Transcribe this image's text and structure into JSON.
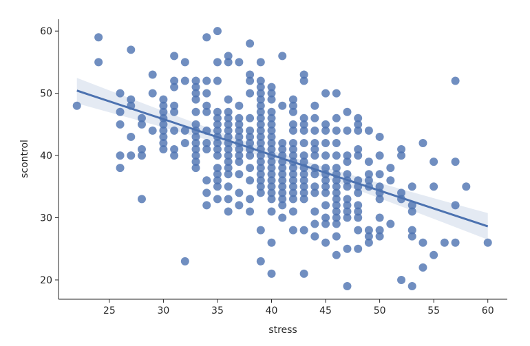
{
  "chart_data": {
    "type": "scatter",
    "title": "",
    "xlabel": "stress",
    "ylabel": "scontrol",
    "xlim": [
      20.3,
      61.8
    ],
    "ylim": [
      16.9,
      61.9
    ],
    "xticks": [
      25,
      30,
      35,
      40,
      45,
      50,
      55,
      60
    ],
    "yticks": [
      20,
      30,
      40,
      50,
      60
    ],
    "grid": false,
    "regression_line": true,
    "confidence_band": true,
    "colors": {
      "points": "#4c72b0",
      "line": "#4c72b0",
      "band": "#4c72b0"
    },
    "columns": [
      {
        "x": 22,
        "y": [
          48
        ]
      },
      {
        "x": 24,
        "y": [
          59,
          55
        ]
      },
      {
        "x": 26,
        "y": [
          50,
          47,
          45,
          40,
          38
        ]
      },
      {
        "x": 27,
        "y": [
          57,
          49,
          48,
          43,
          40
        ]
      },
      {
        "x": 28,
        "y": [
          46,
          45,
          41,
          40,
          33
        ]
      },
      {
        "x": 29,
        "y": [
          53,
          50,
          44
        ]
      },
      {
        "x": 30,
        "y": [
          49,
          48,
          47,
          46,
          45,
          44,
          43,
          42,
          41
        ]
      },
      {
        "x": 31,
        "y": [
          56,
          52,
          51,
          48,
          47,
          44,
          41,
          40
        ]
      },
      {
        "x": 32,
        "y": [
          55,
          52,
          44,
          42,
          23
        ]
      },
      {
        "x": 33,
        "y": [
          52,
          51,
          50,
          49,
          47,
          45,
          44,
          43,
          42,
          41,
          40,
          39,
          38
        ]
      },
      {
        "x": 34,
        "y": [
          59,
          52,
          50,
          48,
          47,
          44,
          42,
          41,
          36,
          34,
          32
        ]
      },
      {
        "x": 35,
        "y": [
          60,
          55,
          52,
          47,
          46,
          45,
          44,
          43,
          42,
          41,
          40,
          38,
          37,
          36,
          35,
          33
        ]
      },
      {
        "x": 36,
        "y": [
          56,
          55,
          49,
          47,
          46,
          45,
          44,
          43,
          42,
          41,
          40,
          39,
          38,
          37,
          35,
          33,
          31
        ]
      },
      {
        "x": 37,
        "y": [
          55,
          48,
          46,
          45,
          44,
          43,
          42,
          41,
          40,
          39,
          37,
          34,
          32
        ]
      },
      {
        "x": 38,
        "y": [
          58,
          53,
          52,
          50,
          46,
          44,
          43,
          42,
          41,
          40,
          38,
          36,
          33,
          31
        ]
      },
      {
        "x": 39,
        "y": [
          55,
          52,
          51,
          50,
          49,
          48,
          47,
          46,
          45,
          44,
          43,
          42,
          41,
          40,
          39,
          38,
          37,
          36,
          35,
          34,
          28,
          23
        ]
      },
      {
        "x": 40,
        "y": [
          51,
          50,
          49,
          47,
          46,
          45,
          44,
          43,
          42,
          41,
          40,
          39,
          38,
          37,
          36,
          35,
          34,
          33,
          31,
          26,
          21
        ]
      },
      {
        "x": 41,
        "y": [
          56,
          48,
          42,
          41,
          40,
          39,
          38,
          37,
          36,
          35,
          34,
          33,
          32,
          30
        ]
      },
      {
        "x": 42,
        "y": [
          49,
          48,
          47,
          45,
          44,
          42,
          41,
          40,
          39,
          38,
          37,
          36,
          35,
          34,
          33,
          31,
          28
        ]
      },
      {
        "x": 43,
        "y": [
          53,
          52,
          46,
          45,
          44,
          42,
          40,
          39,
          38,
          37,
          36,
          35,
          34,
          33,
          28,
          21
        ]
      },
      {
        "x": 44,
        "y": [
          48,
          46,
          44,
          42,
          41,
          40,
          38,
          37,
          35,
          34,
          31,
          29,
          27
        ]
      },
      {
        "x": 45,
        "y": [
          50,
          45,
          44,
          42,
          40,
          38,
          37,
          36,
          35,
          34,
          32,
          30,
          29,
          26
        ]
      },
      {
        "x": 46,
        "y": [
          50,
          46,
          44,
          42,
          40,
          38,
          37,
          36,
          35,
          34,
          33,
          32,
          31,
          30,
          29,
          27,
          24
        ]
      },
      {
        "x": 47,
        "y": [
          47,
          44,
          40,
          39,
          37,
          36,
          35,
          33,
          32,
          31,
          30,
          25,
          19
        ]
      },
      {
        "x": 48,
        "y": [
          46,
          45,
          44,
          41,
          40,
          36,
          35,
          34,
          32,
          31,
          30,
          28,
          25
        ]
      },
      {
        "x": 49,
        "y": [
          44,
          39,
          37,
          36,
          35,
          28,
          27,
          26
        ]
      },
      {
        "x": 50,
        "y": [
          43,
          40,
          37,
          35,
          34,
          33,
          30,
          28,
          27
        ]
      },
      {
        "x": 51,
        "y": [
          38,
          36,
          29
        ]
      },
      {
        "x": 52,
        "y": [
          41,
          40,
          34,
          33,
          20
        ]
      },
      {
        "x": 53,
        "y": [
          35,
          32,
          31,
          28,
          27,
          19
        ]
      },
      {
        "x": 54,
        "y": [
          42,
          26,
          22
        ]
      },
      {
        "x": 55,
        "y": [
          39,
          35,
          24
        ]
      },
      {
        "x": 56,
        "y": [
          26
        ]
      },
      {
        "x": 57,
        "y": [
          52,
          39,
          32,
          26
        ]
      },
      {
        "x": 58,
        "y": [
          35
        ]
      },
      {
        "x": 60,
        "y": [
          26
        ]
      }
    ]
  }
}
